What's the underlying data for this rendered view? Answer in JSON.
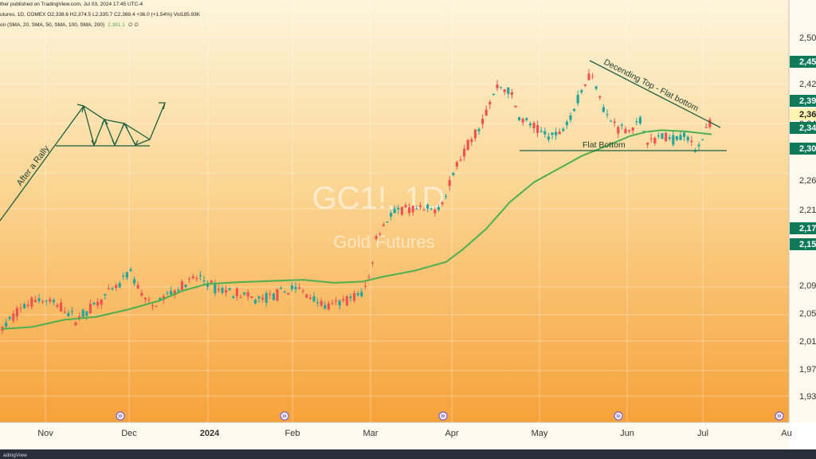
{
  "header": {
    "line1": "ther published on TradingView.com, Jul 03, 2024 17:45 UTC-4",
    "line2": "utures, 1D, COMEX  O2,338.6  H2,374.5  L2,335.7  C2,369.4  +36.0 (+1.54%)  Vol185.93K",
    "line3": "on (SMA, 20, SMA, 50, SMA, 100, SMA, 200)",
    "line3_value": "2,361.1",
    "line3_tail": "∅  ∅"
  },
  "watermark": {
    "symbol": "GC1!, 1D",
    "name": "Gold Futures"
  },
  "annotations": {
    "after_rally": "After a Rally",
    "descending_top": "Decending Top - Flat bottom",
    "flat_bottom": "Flat Bottom"
  },
  "price_scale": {
    "labels": [
      "2,50",
      "2,42",
      "2,34",
      "2,30",
      "2,26",
      "2,21",
      "2,09",
      "2,05",
      "2,01",
      "1,97",
      "1,93"
    ],
    "badges": [
      {
        "text": "2,45",
        "color": "#0e7a57"
      },
      {
        "text": "2,39",
        "color": "#0e7a57"
      },
      {
        "text": "2,36",
        "color": "#fff3b0"
      },
      {
        "text": "2,34",
        "color": "#0e7a57"
      },
      {
        "text": "2,30",
        "color": "#0e7a57"
      },
      {
        "text": "2,17",
        "color": "#0e7a57"
      },
      {
        "text": "2,15",
        "color": "#0e7a57"
      }
    ]
  },
  "time_axis": {
    "labels": [
      "Nov",
      "Dec",
      "2024",
      "Feb",
      "Mar",
      "Apr",
      "May",
      "Jun",
      "Jul",
      "Au"
    ]
  },
  "footer": {
    "text": "adingView"
  },
  "colors": {
    "up": "#26a69a",
    "down": "#ef5350",
    "sma": "#4caf50",
    "annotation": "#1b5e3f",
    "bg_top": "#fdf3d6",
    "bg_bottom": "#f7a43a"
  }
}
